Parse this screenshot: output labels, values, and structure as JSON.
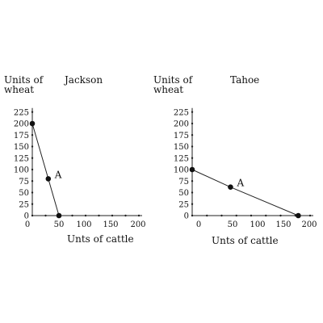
{
  "chart_data": [
    {
      "type": "line",
      "title": "Jackson",
      "ylabel": "Units of wheat",
      "xlabel": "Unts of cattle",
      "xlim": [
        0,
        200
      ],
      "ylim": [
        0,
        225
      ],
      "x_ticks": [
        "0",
        "50",
        "100",
        "150",
        "200"
      ],
      "y_ticks": [
        "0",
        "25",
        "50",
        "75",
        "100",
        "125",
        "150",
        "175",
        "200",
        "225"
      ],
      "series": [
        {
          "points": [
            [
              0,
              200
            ],
            [
              30,
              80
            ],
            [
              50,
              0
            ]
          ]
        }
      ],
      "annotations": [
        {
          "text": "A",
          "x": 30,
          "y": 80
        }
      ]
    },
    {
      "type": "line",
      "title": "Tahoe",
      "ylabel": "Units of wheat",
      "xlabel": "Unts of cattle",
      "xlim": [
        0,
        200
      ],
      "ylim": [
        0,
        225
      ],
      "x_ticks": [
        "0",
        "50",
        "100",
        "150",
        "200"
      ],
      "y_ticks": [
        "0",
        "25",
        "50",
        "75",
        "100",
        "125",
        "150",
        "175",
        "200",
        "225"
      ],
      "series": [
        {
          "points": [
            [
              0,
              100
            ],
            [
              65,
              62
            ],
            [
              180,
              0
            ]
          ]
        }
      ],
      "annotations": [
        {
          "text": "A",
          "x": 65,
          "y": 62
        }
      ]
    }
  ]
}
